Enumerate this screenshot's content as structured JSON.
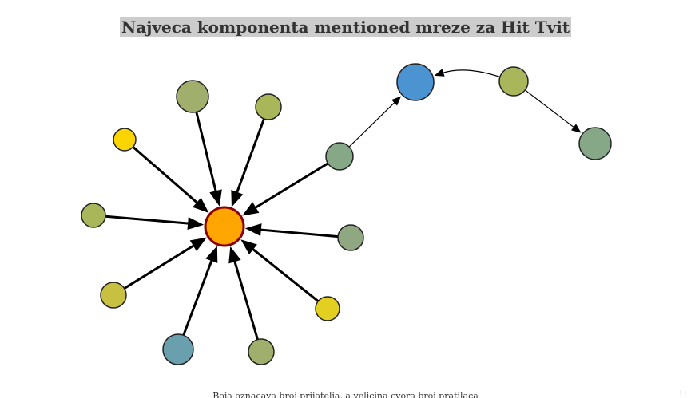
{
  "title": "Najveca komponenta mentioned mreze za Hit Tvit",
  "caption": "Boja oznacava broj prijatelja, a velicina cvora broj pratilaca",
  "colors": {
    "title_background": "#cccccc",
    "edge": "#000000",
    "center_fill": "#ffa500",
    "center_stroke": "#8b0000",
    "node_stroke": "#222222"
  },
  "icons": {
    "resize_grip": "resize-grip-icon"
  },
  "graph": {
    "nodes": [
      {
        "id": "center",
        "color": "#ffa500"
      },
      {
        "id": "n1",
        "color": "#a0b06c"
      },
      {
        "id": "n2",
        "color": "#a9b75a"
      },
      {
        "id": "n3",
        "color": "#fcd401"
      },
      {
        "id": "n4",
        "color": "#a9b75a"
      },
      {
        "id": "n5",
        "color": "#c8c040"
      },
      {
        "id": "n6",
        "color": "#6a9fae"
      },
      {
        "id": "n7",
        "color": "#a0b06c"
      },
      {
        "id": "n8",
        "color": "#e3cf22"
      },
      {
        "id": "n9",
        "color": "#8fa882"
      },
      {
        "id": "n10",
        "color": "#86a886"
      },
      {
        "id": "n11",
        "color": "#4c93d1"
      },
      {
        "id": "n12",
        "color": "#a9b75a"
      },
      {
        "id": "n13",
        "color": "#86a886"
      }
    ],
    "edges": [
      {
        "source": "n1",
        "target": "center"
      },
      {
        "source": "n2",
        "target": "center"
      },
      {
        "source": "n3",
        "target": "center"
      },
      {
        "source": "n4",
        "target": "center"
      },
      {
        "source": "n5",
        "target": "center"
      },
      {
        "source": "n6",
        "target": "center"
      },
      {
        "source": "n7",
        "target": "center"
      },
      {
        "source": "n8",
        "target": "center"
      },
      {
        "source": "n9",
        "target": "center"
      },
      {
        "source": "n10",
        "target": "center"
      },
      {
        "source": "n10",
        "target": "n11"
      },
      {
        "source": "n12",
        "target": "n11"
      },
      {
        "source": "n12",
        "target": "n13"
      }
    ]
  }
}
